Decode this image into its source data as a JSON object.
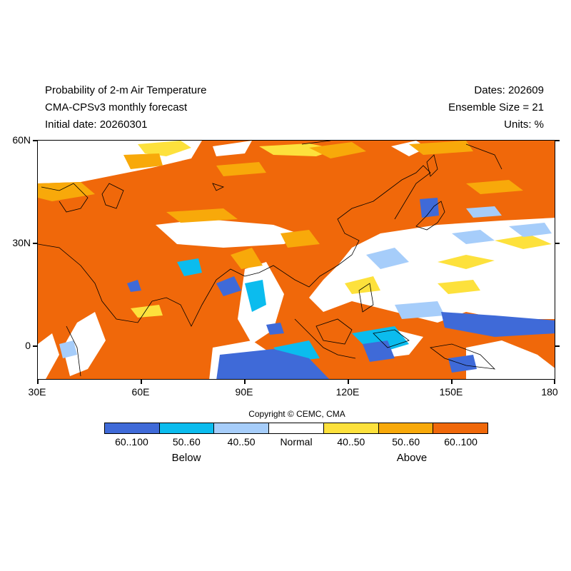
{
  "header": {
    "title": "Probability of 2-m Air Temperature",
    "subtitle": "CMA-CPSv3 monthly forecast",
    "initial_date": "Initial date: 20260301",
    "dates": "Dates: 202609",
    "ensemble_size": "Ensemble Size = 21",
    "units": "Units: %"
  },
  "map": {
    "lat_range": [
      -10,
      60
    ],
    "lon_range": [
      30,
      180
    ],
    "lat_labels": [
      "60N",
      "30N",
      "0"
    ],
    "lon_labels": [
      "30E",
      "60E",
      "90E",
      "120E",
      "150E",
      "180"
    ],
    "background_category": "above-60-100"
  },
  "copyright": "Copyright © CEMC, CMA",
  "legend": {
    "categories": [
      {
        "label": "60..100",
        "color": "#3f6ad8"
      },
      {
        "label": "50..60",
        "color": "#0bbcee"
      },
      {
        "label": "40..50",
        "color": "#a6cdfa"
      },
      {
        "label": "Normal",
        "color": "#ffffff"
      },
      {
        "label": "40..50",
        "color": "#fde13c"
      },
      {
        "label": "50..60",
        "color": "#f8a90a"
      },
      {
        "label": "60..100",
        "color": "#f0680a"
      }
    ],
    "below_label": "Below",
    "above_label": "Above"
  }
}
